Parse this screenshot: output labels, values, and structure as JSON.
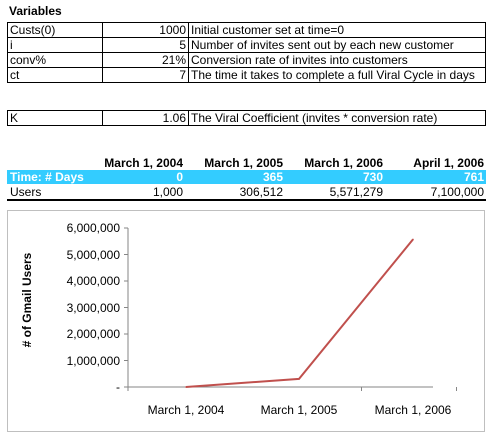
{
  "title": "Variables",
  "variables": [
    {
      "name": "Custs(0)",
      "value": "1000",
      "desc": "Initial customer set at time=0"
    },
    {
      "name": "i",
      "value": "5",
      "desc": "Number of invites sent out by each new customer"
    },
    {
      "name": "conv%",
      "value": "21%",
      "desc": "Conversion rate of invites into customers"
    },
    {
      "name": "ct",
      "value": "7",
      "desc": "The time it takes to complete a full Viral Cycle in days"
    }
  ],
  "k": {
    "name": "K",
    "value": "1.06",
    "desc": "The Viral Coefficient (invites * conversion rate)"
  },
  "dates": [
    "March 1, 2004",
    "March 1, 2005",
    "March 1, 2006",
    "April 1, 2006"
  ],
  "time_row": {
    "label": "Time: # Days",
    "values": [
      "0",
      "365",
      "730",
      "761"
    ]
  },
  "users_row": {
    "label": "Users",
    "values": [
      "1,000",
      "306,512",
      "5,571,279",
      "7,100,000"
    ]
  },
  "colors": {
    "accent": "#33ccff",
    "line": "#c0504d"
  },
  "chart_data": {
    "type": "line",
    "title": "",
    "xlabel": "",
    "ylabel": "# of Gmail Users",
    "categories": [
      "March 1, 2004",
      "March 1, 2005",
      "March 1, 2006"
    ],
    "series": [
      {
        "values": [
          1000,
          306512,
          5571279
        ]
      }
    ],
    "ylim": [
      0,
      6000000
    ],
    "yticks": [
      "-",
      "1,000,000",
      "2,000,000",
      "3,000,000",
      "4,000,000",
      "5,000,000",
      "6,000,000"
    ],
    "grid": false,
    "legend": "none"
  }
}
